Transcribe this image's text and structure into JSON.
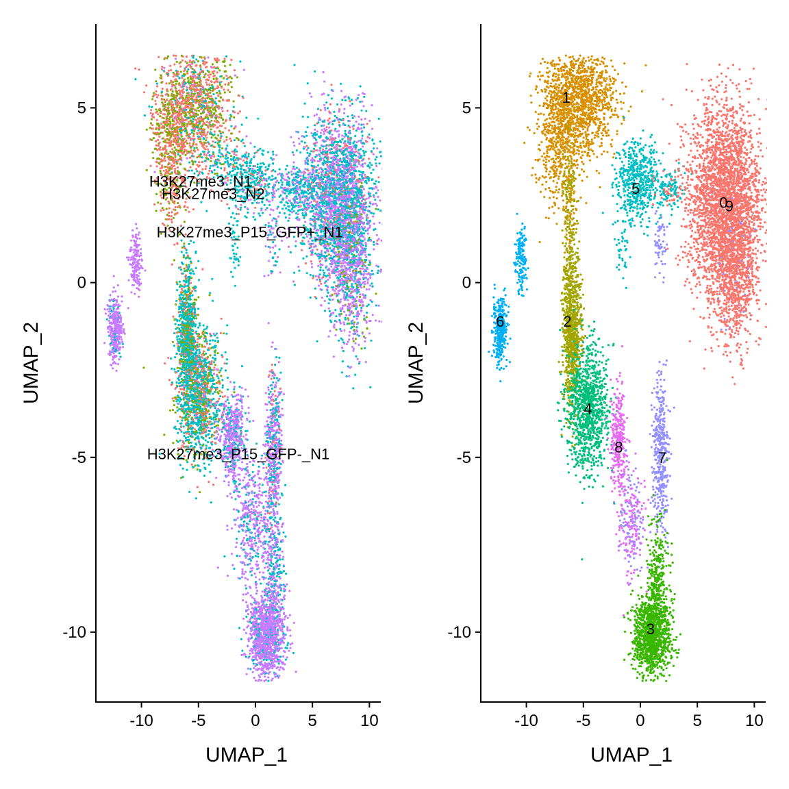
{
  "chart_data": [
    {
      "type": "scatter",
      "xlabel": "UMAP_1",
      "ylabel": "UMAP_2",
      "xlim": [
        -14,
        11
      ],
      "ylim": [
        -12,
        7.4
      ],
      "xticks": [
        -10,
        -5,
        0,
        5,
        10
      ],
      "yticks": [
        -10,
        -5,
        0,
        5
      ],
      "xtick_labels": [
        "-10",
        "-5",
        "0",
        "5",
        "10"
      ],
      "ytick_labels": [
        "-10",
        "-5",
        "0",
        "5"
      ],
      "grid": false,
      "legend": "none",
      "color_by": "sample",
      "point_colors": [
        "#F8766D",
        "#7CAE00",
        "#00BFC4",
        "#C77CFF"
      ],
      "labels": [
        {
          "text": "H3K27me3_N1",
          "x": -4.8,
          "y": 2.9
        },
        {
          "text": "H3K27me3_N2",
          "x": -3.7,
          "y": 2.55
        },
        {
          "text": "H3K27me3_P15_GFP+_N1",
          "x": -0.5,
          "y": 1.45
        },
        {
          "text": "H3K27me3_P15_GFP-_N1",
          "x": -1.5,
          "y": -4.9
        }
      ],
      "regions": [
        {
          "cx": -5.2,
          "cy": 5.0,
          "sx": 1.6,
          "sy": 0.9,
          "n": 1200,
          "colors": [
            0,
            1,
            2,
            3
          ],
          "w": [
            0.45,
            0.35,
            0.12,
            0.08
          ]
        },
        {
          "cx": -7.5,
          "cy": 4.2,
          "sx": 0.8,
          "sy": 0.9,
          "n": 450,
          "colors": [
            0,
            1
          ],
          "w": [
            0.6,
            0.4
          ]
        },
        {
          "cx": -7.2,
          "cy": 2.6,
          "sx": 0.6,
          "sy": 0.7,
          "n": 150,
          "colors": [
            0,
            1
          ],
          "w": [
            0.6,
            0.4
          ]
        },
        {
          "cx": -0.2,
          "cy": 2.9,
          "sx": 1.2,
          "sy": 0.5,
          "n": 350,
          "colors": [
            2,
            3,
            0
          ],
          "w": [
            0.75,
            0.15,
            0.1
          ]
        },
        {
          "cx": -2.5,
          "cy": 3.4,
          "sx": 1.4,
          "sy": 0.3,
          "n": 120,
          "colors": [
            2,
            0
          ],
          "w": [
            0.8,
            0.2
          ]
        },
        {
          "cx": 7.2,
          "cy": 2.4,
          "sx": 1.6,
          "sy": 1.2,
          "n": 2600,
          "colors": [
            2,
            3,
            0
          ],
          "w": [
            0.5,
            0.4,
            0.1
          ]
        },
        {
          "cx": 8.4,
          "cy": 0.5,
          "sx": 0.9,
          "sy": 1.2,
          "n": 800,
          "colors": [
            3,
            2,
            1
          ],
          "w": [
            0.6,
            0.3,
            0.1
          ]
        },
        {
          "cx": 3.5,
          "cy": 2.6,
          "sx": 0.8,
          "sy": 0.4,
          "n": 250,
          "colors": [
            2,
            3
          ],
          "w": [
            0.6,
            0.4
          ]
        },
        {
          "cx": 1.5,
          "cy": 1.3,
          "sx": 0.4,
          "sy": 0.6,
          "n": 60,
          "colors": [
            3,
            2
          ],
          "w": [
            0.6,
            0.4
          ]
        },
        {
          "cx": -1.8,
          "cy": 1.0,
          "sx": 0.3,
          "sy": 0.5,
          "n": 40,
          "colors": [
            2
          ],
          "w": [
            1
          ]
        },
        {
          "cx": -10.5,
          "cy": 0.6,
          "sx": 0.25,
          "sy": 0.45,
          "n": 150,
          "colors": [
            3
          ],
          "w": [
            1
          ]
        },
        {
          "cx": -12.3,
          "cy": -1.3,
          "sx": 0.3,
          "sy": 0.45,
          "n": 350,
          "colors": [
            3,
            2
          ],
          "w": [
            0.85,
            0.15
          ]
        },
        {
          "cx": -6.0,
          "cy": -1.3,
          "sx": 0.4,
          "sy": 0.9,
          "n": 800,
          "colors": [
            2,
            1,
            0
          ],
          "w": [
            0.65,
            0.2,
            0.15
          ]
        },
        {
          "cx": -5.0,
          "cy": -3.2,
          "sx": 1.0,
          "sy": 1.0,
          "n": 1300,
          "colors": [
            2,
            0,
            1,
            3
          ],
          "w": [
            0.55,
            0.2,
            0.2,
            0.05
          ]
        },
        {
          "cx": -2.0,
          "cy": -4.4,
          "sx": 0.6,
          "sy": 0.6,
          "n": 500,
          "colors": [
            3,
            2
          ],
          "w": [
            0.75,
            0.25
          ]
        },
        {
          "cx": 1.6,
          "cy": -4.8,
          "sx": 0.35,
          "sy": 1.2,
          "n": 500,
          "colors": [
            3,
            2,
            0
          ],
          "w": [
            0.55,
            0.35,
            0.1
          ]
        },
        {
          "cx": -0.3,
          "cy": -6.8,
          "sx": 0.9,
          "sy": 0.9,
          "n": 450,
          "colors": [
            3,
            2
          ],
          "w": [
            0.75,
            0.25
          ]
        },
        {
          "cx": 1.6,
          "cy": -8.4,
          "sx": 0.45,
          "sy": 0.9,
          "n": 300,
          "colors": [
            2,
            3
          ],
          "w": [
            0.5,
            0.5
          ]
        },
        {
          "cx": 1.0,
          "cy": -10.1,
          "sx": 0.8,
          "sy": 0.6,
          "n": 1100,
          "colors": [
            3,
            2
          ],
          "w": [
            0.85,
            0.15
          ]
        }
      ]
    },
    {
      "type": "scatter",
      "xlabel": "UMAP_1",
      "ylabel": "UMAP_2",
      "xlim": [
        -14,
        11
      ],
      "ylim": [
        -12,
        7.4
      ],
      "xticks": [
        -10,
        -5,
        0,
        5,
        10
      ],
      "yticks": [
        -10,
        -5,
        0,
        5
      ],
      "xtick_labels": [
        "-10",
        "-5",
        "0",
        "5",
        "10"
      ],
      "ytick_labels": [
        "-10",
        "-5",
        "0",
        "5"
      ],
      "grid": false,
      "legend": "none",
      "color_by": "cluster",
      "point_colors": [
        "#F8766D",
        "#D89000",
        "#A3A500",
        "#39B600",
        "#00BF7D",
        "#00BFC4",
        "#00B0F6",
        "#9590FF",
        "#E76BF3",
        "#FF62BC"
      ],
      "labels": [
        {
          "text": "0",
          "x": 7.3,
          "y": 2.3
        },
        {
          "text": "1",
          "x": -6.5,
          "y": 5.3
        },
        {
          "text": "2",
          "x": -6.4,
          "y": -1.1
        },
        {
          "text": "3",
          "x": 0.9,
          "y": -9.9
        },
        {
          "text": "4",
          "x": -4.6,
          "y": -3.6
        },
        {
          "text": "5",
          "x": -0.4,
          "y": 2.7
        },
        {
          "text": "6",
          "x": -12.3,
          "y": -1.1
        },
        {
          "text": "7",
          "x": 1.9,
          "y": -5.0
        },
        {
          "text": "8",
          "x": -1.9,
          "y": -4.7
        },
        {
          "text": "9",
          "x": 7.8,
          "y": 2.2
        }
      ],
      "regions": [
        {
          "cx": -5.2,
          "cy": 5.2,
          "sx": 1.5,
          "sy": 0.8,
          "n": 1300,
          "colors": [
            1
          ],
          "w": [
            1
          ]
        },
        {
          "cx": -7.3,
          "cy": 4.0,
          "sx": 0.8,
          "sy": 1.0,
          "n": 450,
          "colors": [
            1
          ],
          "w": [
            1
          ]
        },
        {
          "cx": -6.2,
          "cy": 2.2,
          "sx": 0.3,
          "sy": 0.9,
          "n": 200,
          "colors": [
            2,
            1
          ],
          "w": [
            0.6,
            0.4
          ]
        },
        {
          "cx": -0.3,
          "cy": 2.9,
          "sx": 0.9,
          "sy": 0.6,
          "n": 500,
          "colors": [
            5
          ],
          "w": [
            1
          ]
        },
        {
          "cx": 2.5,
          "cy": 2.7,
          "sx": 0.8,
          "sy": 0.3,
          "n": 150,
          "colors": [
            5,
            0
          ],
          "w": [
            0.8,
            0.2
          ]
        },
        {
          "cx": 7.4,
          "cy": 2.3,
          "sx": 1.6,
          "sy": 1.4,
          "n": 3000,
          "colors": [
            0
          ],
          "w": [
            1
          ]
        },
        {
          "cx": 8.4,
          "cy": 0.3,
          "sx": 0.9,
          "sy": 1.1,
          "n": 700,
          "colors": [
            0,
            7
          ],
          "w": [
            0.95,
            0.05
          ]
        },
        {
          "cx": 1.7,
          "cy": 1.1,
          "sx": 0.3,
          "sy": 0.5,
          "n": 60,
          "colors": [
            7
          ],
          "w": [
            1
          ]
        },
        {
          "cx": -1.6,
          "cy": 0.9,
          "sx": 0.3,
          "sy": 0.6,
          "n": 40,
          "colors": [
            5
          ],
          "w": [
            1
          ]
        },
        {
          "cx": -10.5,
          "cy": 0.6,
          "sx": 0.25,
          "sy": 0.45,
          "n": 150,
          "colors": [
            6
          ],
          "w": [
            1
          ]
        },
        {
          "cx": -12.3,
          "cy": -1.3,
          "sx": 0.3,
          "sy": 0.45,
          "n": 350,
          "colors": [
            6
          ],
          "w": [
            1
          ]
        },
        {
          "cx": -6.0,
          "cy": -1.3,
          "sx": 0.4,
          "sy": 1.1,
          "n": 900,
          "colors": [
            2
          ],
          "w": [
            1
          ]
        },
        {
          "cx": -4.6,
          "cy": -3.6,
          "sx": 0.9,
          "sy": 0.9,
          "n": 1000,
          "colors": [
            4
          ],
          "w": [
            1
          ]
        },
        {
          "cx": -1.9,
          "cy": -4.5,
          "sx": 0.35,
          "sy": 0.7,
          "n": 300,
          "colors": [
            8
          ],
          "w": [
            1
          ]
        },
        {
          "cx": -0.8,
          "cy": -6.8,
          "sx": 0.6,
          "sy": 0.8,
          "n": 250,
          "colors": [
            8,
            7
          ],
          "w": [
            0.6,
            0.4
          ]
        },
        {
          "cx": 1.8,
          "cy": -4.9,
          "sx": 0.35,
          "sy": 1.1,
          "n": 400,
          "colors": [
            7
          ],
          "w": [
            1
          ]
        },
        {
          "cx": 1.5,
          "cy": -8.5,
          "sx": 0.45,
          "sy": 0.8,
          "n": 300,
          "colors": [
            3
          ],
          "w": [
            1
          ]
        },
        {
          "cx": 1.0,
          "cy": -10.1,
          "sx": 0.8,
          "sy": 0.6,
          "n": 1100,
          "colors": [
            3
          ],
          "w": [
            1
          ]
        }
      ]
    }
  ]
}
